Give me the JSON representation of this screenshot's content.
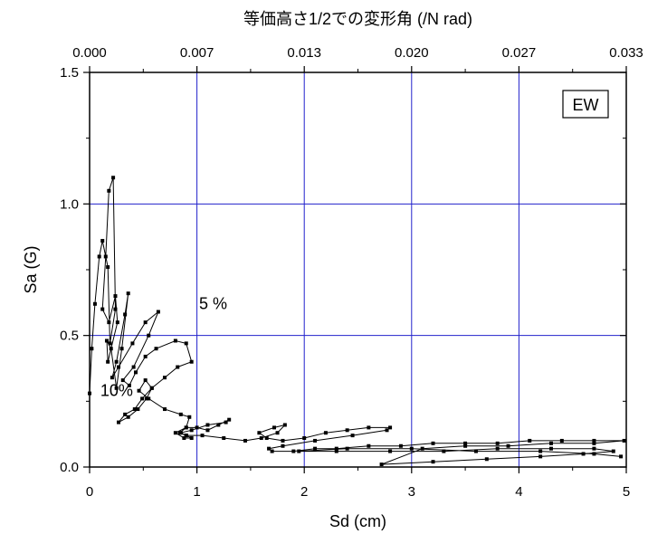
{
  "chart_data": {
    "type": "scatter",
    "title": "",
    "xlabel": "Sd (cm)",
    "ylabel": "Sa (G)",
    "x2label": "等価高さ1/2での変形角 (/N rad)",
    "xlim": [
      0,
      5
    ],
    "ylim": [
      0,
      1.5
    ],
    "x_ticks": [
      "0",
      "1",
      "2",
      "3",
      "4",
      "5"
    ],
    "y_ticks": [
      "0.0",
      "0.5",
      "1.0",
      "1.5"
    ],
    "x2_ticks": [
      "0.000",
      "0.007",
      "0.013",
      "0.020",
      "0.027",
      "0.033"
    ],
    "grid": true,
    "grid_color": "#2222cc",
    "legend_box": "EW",
    "annotations": [
      {
        "text": "5 %",
        "x": 1.02,
        "y": 0.6
      },
      {
        "text": "10%",
        "x": 0.1,
        "y": 0.27
      }
    ],
    "series": [
      {
        "color": "#000000",
        "x": [
          0.0,
          0.02,
          0.05,
          0.09,
          0.12,
          0.17,
          0.19,
          0.24,
          0.22,
          0.18,
          0.15,
          0.12,
          0.18,
          0.24,
          0.26,
          0.17,
          0.16,
          0.2,
          0.25,
          0.3,
          0.36,
          0.33,
          0.25,
          0.21,
          0.27,
          0.4,
          0.52,
          0.64,
          0.55,
          0.41,
          0.31,
          0.37,
          0.43,
          0.52,
          0.62,
          0.8,
          0.9,
          0.95,
          0.82,
          0.7,
          0.58,
          0.49,
          0.42,
          0.33,
          0.27,
          0.36,
          0.45,
          0.53,
          0.58,
          0.52,
          0.46,
          0.55,
          0.7,
          0.85,
          0.93,
          0.9,
          0.84,
          0.9,
          0.95,
          0.88,
          0.8,
          0.9,
          1.0,
          1.1,
          1.2,
          1.3,
          1.27,
          1.1,
          0.95,
          0.85,
          0.9,
          1.05,
          1.25,
          1.45,
          1.6,
          1.75,
          1.82,
          1.72,
          1.58,
          1.65,
          1.8,
          2.0,
          2.2,
          2.4,
          2.6,
          2.8,
          2.77,
          2.45,
          2.1,
          1.8,
          1.67,
          1.7,
          1.9,
          2.1,
          2.3,
          2.6,
          2.9,
          3.2,
          3.5,
          3.8,
          4.1,
          4.4,
          4.7,
          4.98,
          4.7,
          4.3,
          3.9,
          3.5,
          3.1,
          2.72,
          3.2,
          3.7,
          4.2,
          4.6,
          4.88,
          4.7,
          4.3,
          3.8,
          3.3,
          2.8,
          2.3,
          1.95,
          2.4,
          3.0,
          3.6,
          4.2,
          4.7,
          4.95
        ],
        "y": [
          0.28,
          0.45,
          0.62,
          0.8,
          0.86,
          0.76,
          0.47,
          0.6,
          1.1,
          1.05,
          0.8,
          0.6,
          0.55,
          0.65,
          0.55,
          0.4,
          0.48,
          0.45,
          0.3,
          0.45,
          0.66,
          0.58,
          0.4,
          0.34,
          0.38,
          0.47,
          0.55,
          0.59,
          0.5,
          0.38,
          0.33,
          0.31,
          0.36,
          0.42,
          0.45,
          0.48,
          0.47,
          0.4,
          0.38,
          0.34,
          0.3,
          0.26,
          0.22,
          0.2,
          0.17,
          0.19,
          0.22,
          0.26,
          0.3,
          0.33,
          0.29,
          0.26,
          0.22,
          0.2,
          0.19,
          0.15,
          0.13,
          0.12,
          0.11,
          0.11,
          0.13,
          0.15,
          0.15,
          0.14,
          0.16,
          0.18,
          0.17,
          0.16,
          0.14,
          0.13,
          0.12,
          0.12,
          0.11,
          0.1,
          0.11,
          0.13,
          0.16,
          0.15,
          0.13,
          0.11,
          0.1,
          0.11,
          0.13,
          0.14,
          0.15,
          0.15,
          0.14,
          0.12,
          0.1,
          0.08,
          0.07,
          0.06,
          0.06,
          0.07,
          0.07,
          0.08,
          0.08,
          0.09,
          0.09,
          0.09,
          0.1,
          0.1,
          0.1,
          0.1,
          0.09,
          0.09,
          0.08,
          0.08,
          0.07,
          0.01,
          0.02,
          0.03,
          0.04,
          0.05,
          0.06,
          0.07,
          0.07,
          0.07,
          0.06,
          0.06,
          0.06,
          0.06,
          0.07,
          0.07,
          0.06,
          0.06,
          0.05,
          0.04
        ]
      }
    ]
  }
}
